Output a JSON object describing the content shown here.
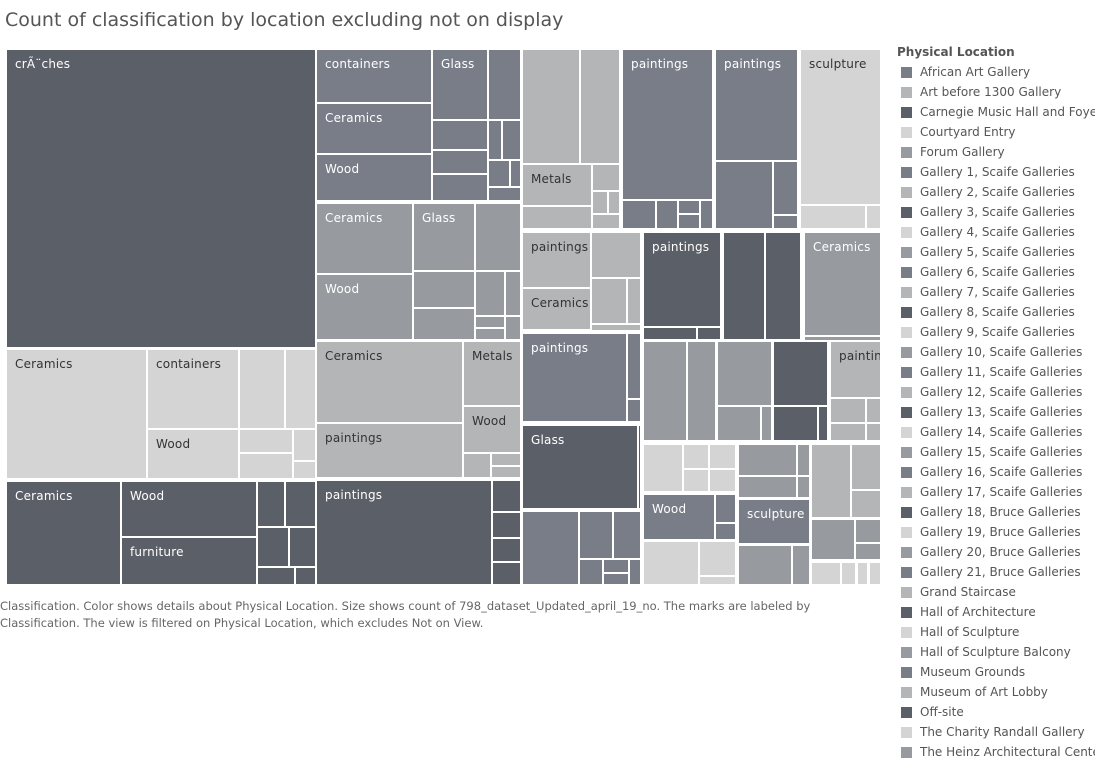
{
  "header": {
    "title": "Count of classification by location excluding not on display"
  },
  "caption": "Classification.  Color shows details about Physical Location.  Size shows count of 798_dataset_Updated_april_19_no.  The marks are labeled by Classification. The view is filtered on Physical Location, which excludes Not on View.",
  "colors": {
    "dark": "#5b5f67",
    "medium": "#787d87",
    "gray": "#979a9f",
    "light_gray": "#b3b5b7",
    "pale": "#d4d4d4"
  },
  "chart_data": {
    "type": "treemap",
    "title": "Count of classification by location excluding not on display",
    "size_measure": "count of 798_dataset_Updated_april_19_no",
    "color_dimension": "Physical Location",
    "label_dimension": "Classification",
    "filter": "Physical Location excludes Not on View",
    "labeled_marks": [
      "crÃ¨ches",
      "containers",
      "Glass",
      "Ceramics",
      "Wood",
      "Ceramics",
      "Glass",
      "Wood",
      "Ceramics",
      "containers",
      "Wood",
      "Ceramics",
      "Metals",
      "paintings",
      "Wood",
      "Ceramics",
      "Wood",
      "furniture",
      "paintings",
      "Metals",
      "paintings",
      "paintings",
      "sculpture",
      "paintings",
      "Ceramics",
      "paintings",
      "Ceramics",
      "paintings",
      "Glass",
      "paintings",
      "Wood",
      "sculpture"
    ]
  },
  "legend": {
    "title": "Physical Location",
    "items": [
      {
        "label": "African Art Gallery",
        "color": "#787d87"
      },
      {
        "label": "Art before 1300 Gallery",
        "color": "#b3b5b7"
      },
      {
        "label": "Carnegie Music Hall and Foyer",
        "color": "#5b5f67"
      },
      {
        "label": "Courtyard Entry",
        "color": "#d4d4d4"
      },
      {
        "label": "Forum Gallery",
        "color": "#979a9f"
      },
      {
        "label": "Gallery 1, Scaife Galleries",
        "color": "#787d87"
      },
      {
        "label": "Gallery 2, Scaife Galleries",
        "color": "#b3b5b7"
      },
      {
        "label": "Gallery 3, Scaife Galleries",
        "color": "#5b5f67"
      },
      {
        "label": "Gallery 4, Scaife Galleries",
        "color": "#d4d4d4"
      },
      {
        "label": "Gallery 5, Scaife Galleries",
        "color": "#979a9f"
      },
      {
        "label": "Gallery 6, Scaife Galleries",
        "color": "#787d87"
      },
      {
        "label": "Gallery 7, Scaife Galleries",
        "color": "#b3b5b7"
      },
      {
        "label": "Gallery 8, Scaife Galleries",
        "color": "#5b5f67"
      },
      {
        "label": "Gallery 9, Scaife Galleries",
        "color": "#d4d4d4"
      },
      {
        "label": "Gallery 10, Scaife Galleries",
        "color": "#979a9f"
      },
      {
        "label": "Gallery 11, Scaife Galleries",
        "color": "#787d87"
      },
      {
        "label": "Gallery 12, Scaife Galleries",
        "color": "#b3b5b7"
      },
      {
        "label": "Gallery 13, Scaife Galleries",
        "color": "#5b5f67"
      },
      {
        "label": "Gallery 14, Scaife Galleries",
        "color": "#d4d4d4"
      },
      {
        "label": "Gallery 15, Scaife Galleries",
        "color": "#979a9f"
      },
      {
        "label": "Gallery 16, Scaife Galleries",
        "color": "#787d87"
      },
      {
        "label": "Gallery 17, Scaife Galleries",
        "color": "#b3b5b7"
      },
      {
        "label": "Gallery 18, Bruce Galleries",
        "color": "#5b5f67"
      },
      {
        "label": "Gallery 19, Bruce Galleries",
        "color": "#d4d4d4"
      },
      {
        "label": "Gallery 20, Bruce Galleries",
        "color": "#979a9f"
      },
      {
        "label": "Gallery 21, Bruce Galleries",
        "color": "#787d87"
      },
      {
        "label": "Grand Staircase",
        "color": "#b3b5b7"
      },
      {
        "label": "Hall of Architecture",
        "color": "#5b5f67"
      },
      {
        "label": "Hall of Sculpture",
        "color": "#d4d4d4"
      },
      {
        "label": "Hall of Sculpture Balcony",
        "color": "#979a9f"
      },
      {
        "label": "Museum Grounds",
        "color": "#787d87"
      },
      {
        "label": "Museum of Art Lobby",
        "color": "#b3b5b7"
      },
      {
        "label": "Off-site",
        "color": "#5b5f67"
      },
      {
        "label": "The Charity Randall Gallery",
        "color": "#d4d4d4"
      },
      {
        "label": "The Heinz Architectural Center",
        "color": "#979a9f"
      }
    ]
  }
}
